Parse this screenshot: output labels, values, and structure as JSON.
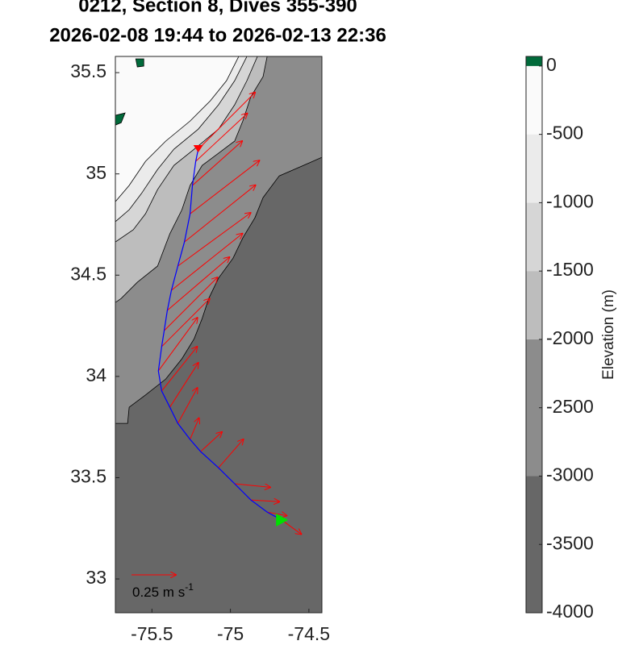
{
  "chart_data": {
    "type": "map",
    "title": [
      "0212, Section 8, Dives 355-390",
      "2026-02-08 19:44 to 2026-02-13 22:36"
    ],
    "xlim": [
      -75.733,
      -74.417
    ],
    "ylim": [
      32.833,
      35.58
    ],
    "xticks": [
      -75.5,
      -75,
      -74.5
    ],
    "yticks": [
      33,
      33.5,
      34,
      34.5,
      35,
      35.5
    ],
    "bathymetry": [
      {
        "from": -3000,
        "color": "#8c8c8c",
        "lon": [
          -75.733,
          -74.417,
          -74.417,
          -74.534,
          -74.689,
          -74.792,
          -74.844,
          -74.921,
          -74.983,
          -75.076,
          -75.138,
          -75.18,
          -75.231,
          -75.309,
          -75.412,
          -75.541,
          -75.645,
          -75.655,
          -75.733
        ],
        "lat": [
          35.58,
          35.58,
          35.082,
          35.042,
          34.99,
          34.883,
          34.783,
          34.684,
          34.584,
          34.485,
          34.385,
          34.286,
          34.186,
          34.087,
          33.987,
          33.908,
          33.848,
          33.768,
          33.768
        ]
      },
      {
        "from": -2000,
        "color": "#bdbdbd",
        "lon": [
          -75.733,
          -74.766,
          -74.792,
          -74.87,
          -74.921,
          -74.973,
          -75.076,
          -75.18,
          -75.257,
          -75.309,
          -75.386,
          -75.464,
          -75.593,
          -75.696,
          -75.733
        ],
        "lat": [
          35.58,
          35.58,
          35.48,
          35.381,
          35.261,
          35.162,
          35.102,
          35.042,
          34.943,
          34.823,
          34.704,
          34.545,
          34.465,
          34.385,
          34.365
        ]
      },
      {
        "from": -1500,
        "color": "#d6d6d6",
        "lon": [
          -75.733,
          -74.828,
          -74.895,
          -74.973,
          -75.076,
          -75.231,
          -75.36,
          -75.464,
          -75.541,
          -75.619,
          -75.733
        ],
        "lat": [
          35.58,
          35.58,
          35.46,
          35.341,
          35.221,
          35.122,
          35.042,
          34.923,
          34.803,
          34.724,
          34.664
        ]
      },
      {
        "from": -1000,
        "color": "#ebebeb",
        "lon": [
          -75.733,
          -74.895,
          -74.973,
          -75.076,
          -75.205,
          -75.36,
          -75.464,
          -75.567,
          -75.645,
          -75.733
        ],
        "lat": [
          35.58,
          35.58,
          35.46,
          35.341,
          35.221,
          35.122,
          35.022,
          34.903,
          34.823,
          34.764
        ]
      },
      {
        "from": -500,
        "color": "#fafafa",
        "lon": [
          -75.733,
          -74.947,
          -75.025,
          -75.128,
          -75.257,
          -75.412,
          -75.541,
          -75.645,
          -75.733
        ],
        "lat": [
          35.58,
          35.58,
          35.46,
          35.361,
          35.261,
          35.162,
          35.062,
          34.943,
          34.863
        ]
      },
      {
        "from": 0,
        "color": "#006a3a",
        "lon": [
          -75.603,
          -75.552,
          -75.552,
          -75.593
        ],
        "lat": [
          35.568,
          35.568,
          35.532,
          35.528
        ]
      },
      {
        "from": 0,
        "color": "#006a3a",
        "lon": [
          -75.733,
          -75.671,
          -75.696,
          -75.733
        ],
        "lat": [
          35.289,
          35.301,
          35.253,
          35.241
        ]
      }
    ],
    "track": {
      "color": "#0000ff",
      "lon": [
        -74.673,
        -74.766,
        -74.87,
        -74.973,
        -75.076,
        -75.19,
        -75.257,
        -75.335,
        -75.386,
        -75.438,
        -75.459,
        -75.438,
        -75.422,
        -75.402,
        -75.376,
        -75.335,
        -75.293,
        -75.257,
        -75.242,
        -75.221,
        -75.205
      ],
      "lat": [
        33.291,
        33.33,
        33.39,
        33.47,
        33.549,
        33.629,
        33.689,
        33.768,
        33.848,
        33.928,
        34.027,
        34.147,
        34.226,
        34.326,
        34.425,
        34.545,
        34.664,
        34.803,
        34.943,
        35.062,
        35.122
      ]
    },
    "start_color": "#00e000",
    "end_color": "#ff0000",
    "currents": {
      "color": "#ff0000",
      "u": [
        0.11,
        0.11,
        0.16,
        0.2,
        0.14,
        0.12,
        0.05,
        0.11,
        0.16,
        0.2,
        0.22,
        0.27,
        0.3,
        0.35,
        0.4,
        0.41,
        0.4,
        0.39,
        0.28,
        0.29,
        0.32
      ],
      "v": [
        -0.08,
        -0.02,
        -0.01,
        -0.02,
        0.16,
        0.11,
        0.12,
        0.2,
        0.25,
        0.25,
        0.3,
        0.27,
        0.3,
        0.3,
        0.32,
        0.3,
        0.32,
        0.3,
        0.25,
        0.27,
        0.32
      ]
    },
    "scale_arrow": {
      "value": 0.25,
      "label": "0.25 m s",
      "superscript": "-1"
    },
    "colorbar": {
      "label": "Elevation (m)",
      "ylim": [
        -4000,
        70
      ],
      "yticks": [
        0,
        -500,
        -1000,
        -1500,
        -2000,
        -2500,
        -3000,
        -3500,
        -4000
      ],
      "bands": [
        {
          "from": -4000,
          "to": -3000,
          "color": "#676767"
        },
        {
          "from": -3000,
          "to": -2000,
          "color": "#8c8c8c"
        },
        {
          "from": -2000,
          "to": -1500,
          "color": "#bdbdbd"
        },
        {
          "from": -1500,
          "to": -1000,
          "color": "#d6d6d6"
        },
        {
          "from": -1000,
          "to": -500,
          "color": "#ebebeb"
        },
        {
          "from": -500,
          "to": 0,
          "color": "#fafafa"
        },
        {
          "from": 0,
          "to": 70,
          "color": "#006a3a"
        }
      ]
    }
  }
}
